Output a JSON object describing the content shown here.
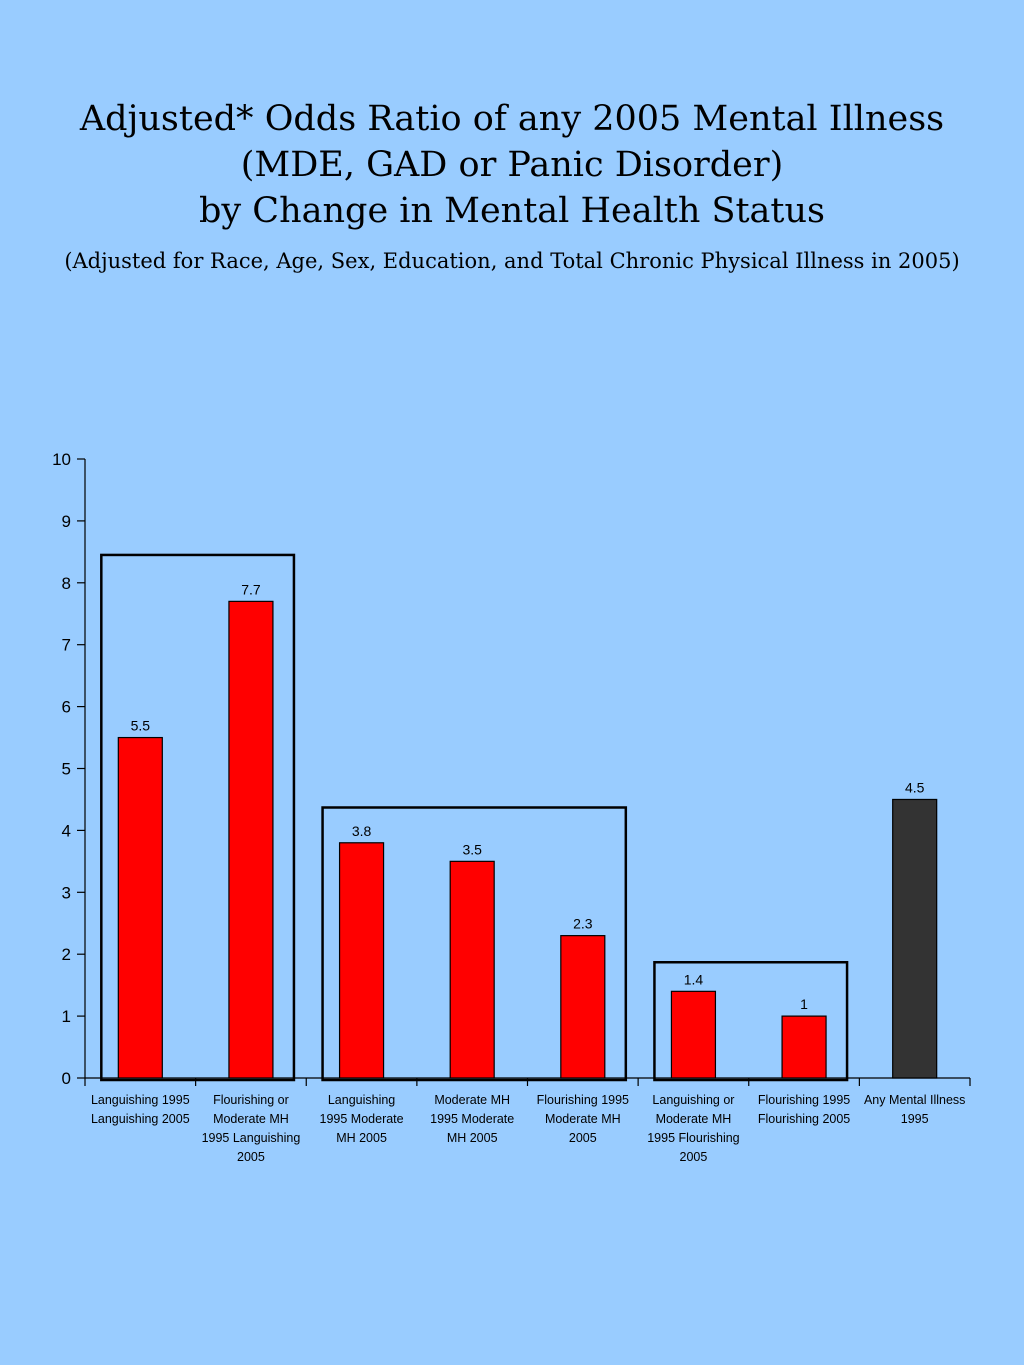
{
  "title": {
    "lines": [
      "Adjusted* Odds Ratio of any 2005 Mental Illness",
      "(MDE, GAD or Panic Disorder)",
      "by Change in Mental Health Status"
    ],
    "subtitle": "(Adjusted for Race, Age, Sex, Education, and Total Chronic Physical Illness in 2005)"
  },
  "chart_data": {
    "type": "bar",
    "ylim": [
      0,
      10
    ],
    "yticks": [
      0,
      1,
      2,
      3,
      4,
      5,
      6,
      7,
      8,
      9,
      10
    ],
    "grid": false,
    "legend": "none",
    "categories": [
      [
        "Languishing 1995",
        "Languishing 2005"
      ],
      [
        "Flourishing or",
        "Moderate MH",
        "1995 Languishing",
        "2005"
      ],
      [
        "Languishing",
        "1995 Moderate",
        "MH 2005"
      ],
      [
        "Moderate MH",
        "1995 Moderate",
        "MH 2005"
      ],
      [
        "Flourishing 1995",
        "Moderate MH",
        "2005"
      ],
      [
        "Languishing or",
        "Moderate MH",
        "1995 Flourishing",
        "2005"
      ],
      [
        "Flourishing 1995",
        "Flourishing 2005"
      ],
      [
        "Any Mental Illness",
        "1995"
      ]
    ],
    "values": [
      5.5,
      7.7,
      3.8,
      3.5,
      2.3,
      1.4,
      1,
      4.5
    ],
    "value_labels": [
      "5.5",
      "7.7",
      "3.8",
      "3.5",
      "2.3",
      "1.4",
      "1",
      "4.5"
    ],
    "bar_colors": [
      "#ff0000",
      "#ff0000",
      "#ff0000",
      "#ff0000",
      "#ff0000",
      "#ff0000",
      "#ff0000",
      "#333333"
    ],
    "groups": [
      {
        "from": 0,
        "to": 1,
        "top": 8.45
      },
      {
        "from": 2,
        "to": 4,
        "top": 4.37
      },
      {
        "from": 5,
        "to": 6,
        "top": 1.87
      }
    ]
  }
}
